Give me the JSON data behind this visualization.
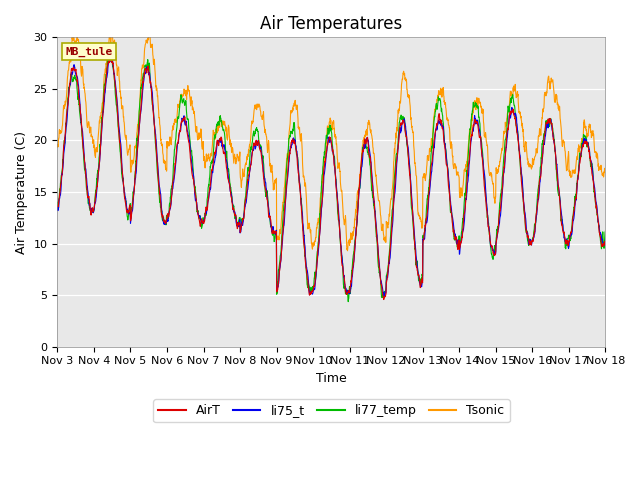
{
  "title": "Air Temperatures",
  "xlabel": "Time",
  "ylabel": "Air Temperature (C)",
  "annotation": "MB_tule",
  "ylim": [
    0,
    30
  ],
  "yticks": [
    0,
    5,
    10,
    15,
    20,
    25,
    30
  ],
  "series_colors": {
    "AirT": "#dd0000",
    "li75_t": "#0000ee",
    "li77_temp": "#00bb00",
    "Tsonic": "#ff9900"
  },
  "background_color": "#e8e8e8",
  "fig_background": "#ffffff",
  "xtick_labels": [
    "Nov 3",
    "Nov 4",
    "Nov 5",
    "Nov 6",
    "Nov 7",
    "Nov 8",
    "Nov 9",
    "Nov 10",
    "Nov 11",
    "Nov 12",
    "Nov 13",
    "Nov 14",
    "Nov 15",
    "Nov 16",
    "Nov 17",
    "Nov 18"
  ],
  "title_fontsize": 12,
  "axis_label_fontsize": 9,
  "tick_fontsize": 8,
  "legend_fontsize": 9
}
